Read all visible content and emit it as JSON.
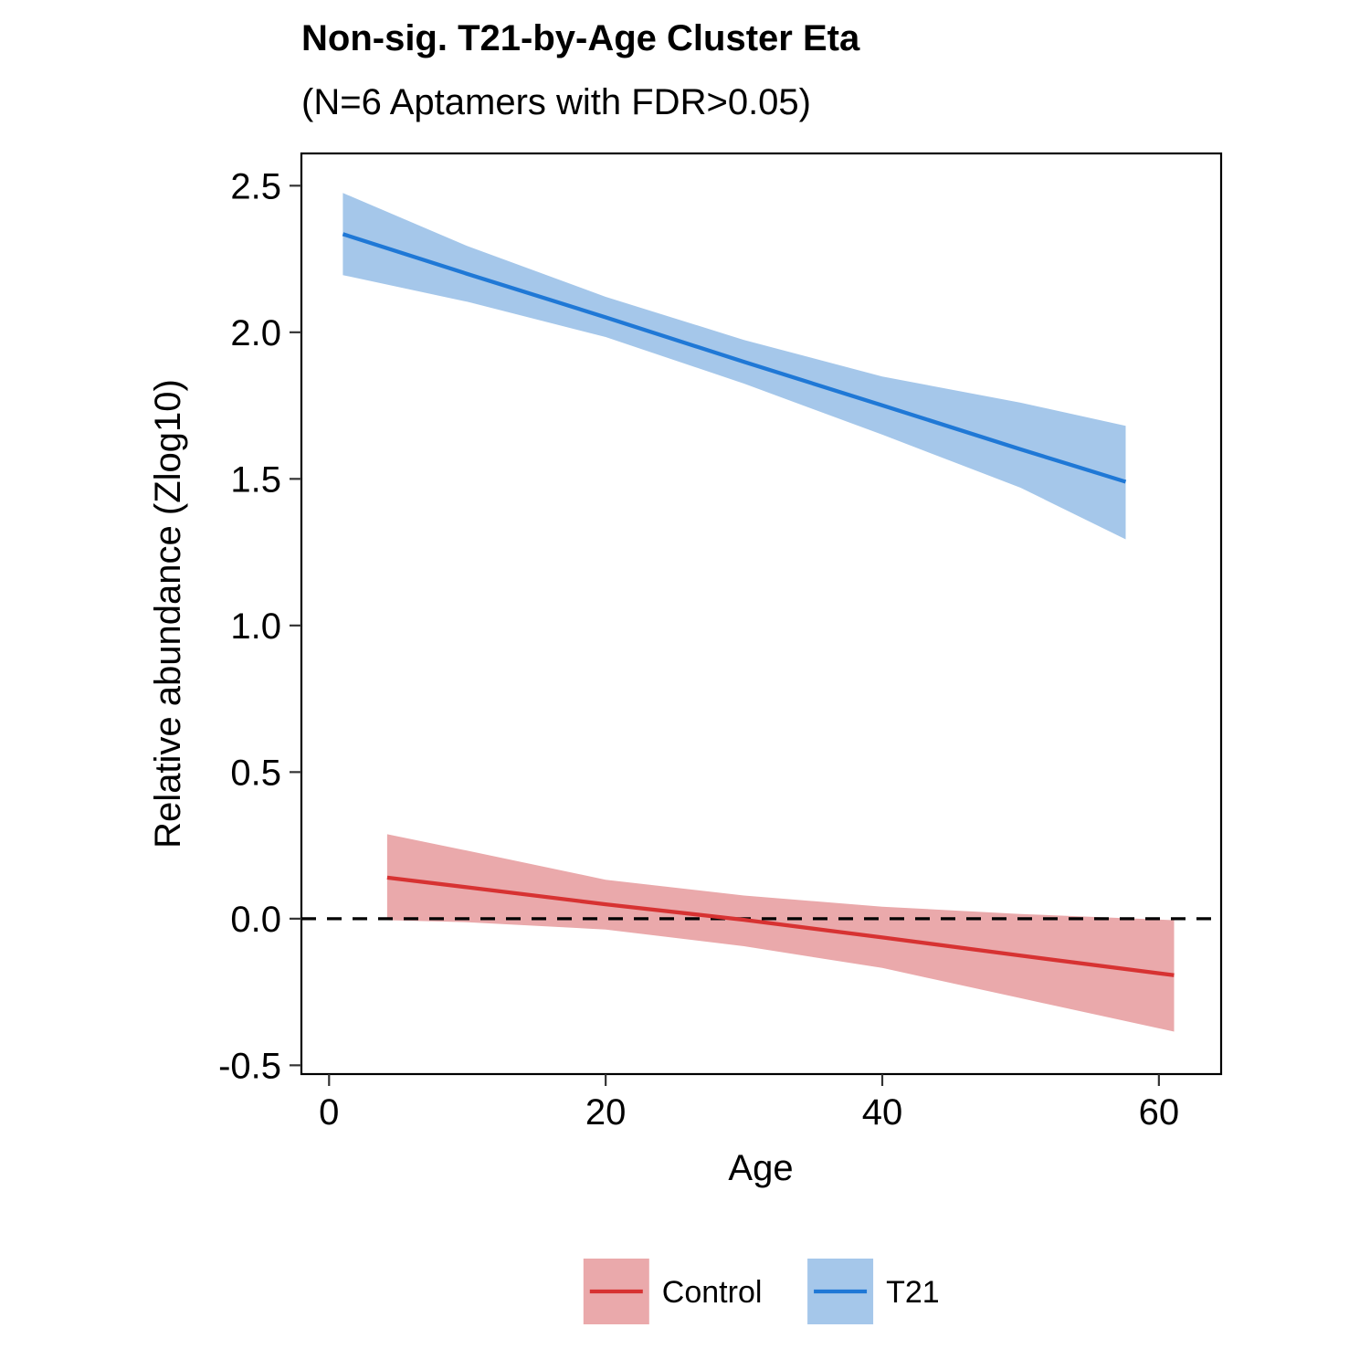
{
  "chart_data": {
    "type": "line",
    "title": "Non-sig. T21-by-Age Cluster Eta",
    "subtitle": "(N=6 Aptamers with FDR>0.05)",
    "xlabel": "Age",
    "ylabel": "Relative abundance (Zlog10)",
    "xlim": [
      -2,
      64.5
    ],
    "ylim": [
      -0.53,
      2.61
    ],
    "xticks": [
      0,
      20,
      40,
      60
    ],
    "yticks": [
      -0.5,
      0.0,
      0.5,
      1.0,
      1.5,
      2.0,
      2.5
    ],
    "xtick_labels": [
      "0",
      "20",
      "40",
      "60"
    ],
    "ytick_labels": [
      "-0.5",
      "0.0",
      "0.5",
      "1.0",
      "1.5",
      "2.0",
      "2.5"
    ],
    "reference_line": {
      "y": 0,
      "style": "dashed"
    },
    "grid": false,
    "legend_position": "bottom",
    "series": [
      {
        "name": "Control",
        "color": "#d73232",
        "band_color": "#eaa9ab",
        "x": [
          4.2,
          10,
          20,
          30,
          40,
          50,
          61.1
        ],
        "y": [
          0.14,
          0.107,
          0.049,
          -0.004,
          -0.064,
          -0.126,
          -0.193
        ],
        "lower": [
          -0.005,
          -0.012,
          -0.037,
          -0.094,
          -0.168,
          -0.271,
          -0.385
        ],
        "upper": [
          0.288,
          0.232,
          0.133,
          0.079,
          0.041,
          0.016,
          -0.005
        ]
      },
      {
        "name": "T21",
        "color": "#1f78d6",
        "band_color": "#a5c7ea",
        "x": [
          1.0,
          10,
          20,
          30,
          40,
          50,
          57.6
        ],
        "y": [
          2.335,
          2.199,
          2.051,
          1.899,
          1.751,
          1.601,
          1.49
        ],
        "lower": [
          2.195,
          2.104,
          1.984,
          1.825,
          1.651,
          1.47,
          1.294
        ],
        "upper": [
          2.475,
          2.294,
          2.121,
          1.974,
          1.849,
          1.76,
          1.681
        ]
      }
    ]
  }
}
